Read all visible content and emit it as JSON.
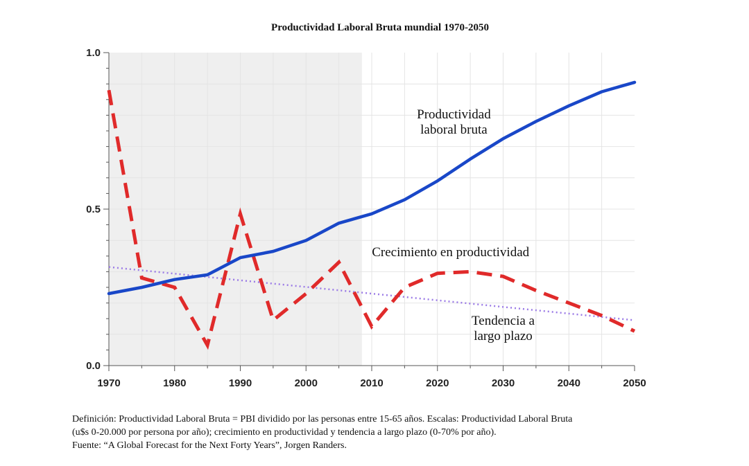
{
  "chart_data": {
    "type": "line",
    "title": "Productividad Laboral Bruta mundial 1970-2050",
    "xlim": [
      1970,
      2050
    ],
    "ylim": [
      0,
      1
    ],
    "x_ticks": [
      1970,
      1980,
      1990,
      2000,
      2010,
      2020,
      2030,
      2040,
      2050
    ],
    "y_ticks": [
      {
        "value": 0,
        "label": "0.0"
      },
      {
        "value": 0.5,
        "label": "0.5"
      },
      {
        "value": 1,
        "label": "1.0"
      }
    ],
    "historical_shading": {
      "from": 1970,
      "to": 2008.5
    },
    "grid": true,
    "series": [
      {
        "name": "Productividad laboral bruta",
        "style": "solid",
        "color": "#1947c8",
        "x": [
          1970,
          1975,
          1980,
          1985,
          1990,
          1995,
          2000,
          2005,
          2010,
          2015,
          2020,
          2025,
          2030,
          2035,
          2040,
          2045,
          2050
        ],
        "y": [
          0.23,
          0.25,
          0.275,
          0.29,
          0.345,
          0.365,
          0.4,
          0.455,
          0.485,
          0.53,
          0.59,
          0.66,
          0.725,
          0.78,
          0.83,
          0.875,
          0.905
        ]
      },
      {
        "name": "Crecimiento en productividad",
        "style": "dashed",
        "color": "#e02a2a",
        "x": [
          1970,
          1975,
          1980,
          1985,
          1990,
          1995,
          2000,
          2005,
          2010,
          2015,
          2020,
          2025,
          2030,
          2035,
          2040,
          2045,
          2050
        ],
        "y": [
          0.88,
          0.28,
          0.25,
          0.065,
          0.485,
          0.145,
          0.23,
          0.33,
          0.125,
          0.25,
          0.295,
          0.3,
          0.285,
          0.24,
          0.2,
          0.16,
          0.11
        ]
      },
      {
        "name": "Tendencia a largo plazo",
        "style": "dotted",
        "color": "#9b7be6",
        "x": [
          1970,
          2050
        ],
        "y": [
          0.315,
          0.145
        ]
      }
    ],
    "annotations": [
      {
        "lines": [
          "Productividad",
          "laboral bruta"
        ],
        "x": 2022.5,
        "y": 0.79
      },
      {
        "lines": [
          "Crecimiento en productividad"
        ],
        "x": 2022,
        "y": 0.35
      },
      {
        "lines": [
          "Tendencia a",
          "largo plazo"
        ],
        "x": 2030,
        "y": 0.13
      }
    ]
  },
  "footnote": {
    "line1": "Definición: Productividad Laboral Bruta = PBI dividido por las personas entre 15-65 años. Escalas: Productividad Laboral Bruta",
    "line2": "(u$s 0-20.000 por persona por año); crecimiento en productividad y tendencia a largo plazo (0-70% por año).",
    "line3": "Fuente: “A Global Forecast for the Next Forty Years”, Jorgen Randers."
  }
}
